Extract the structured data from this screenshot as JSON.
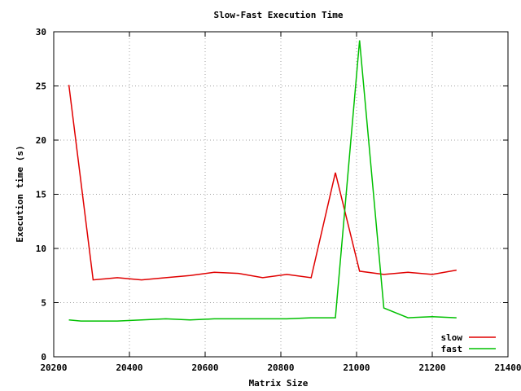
{
  "chart_data": {
    "type": "line",
    "title": "Slow-Fast Execution Time",
    "xlabel": "Matrix Size",
    "ylabel": "Execution time (s)",
    "xlim": [
      20200,
      21400
    ],
    "ylim": [
      0,
      30
    ],
    "xticks": [
      20200,
      20400,
      20600,
      20800,
      21000,
      21200,
      21400
    ],
    "yticks": [
      0,
      5,
      10,
      15,
      20,
      25,
      30
    ],
    "grid": true,
    "legend_position": "bottom-right",
    "series": [
      {
        "name": "slow",
        "color": "#e00000",
        "x": [
          20240,
          20304,
          20368,
          20432,
          20496,
          20560,
          20624,
          20688,
          20752,
          20816,
          20880,
          20944,
          21008,
          21072,
          21136,
          21200,
          21264
        ],
        "y": [
          25.1,
          7.1,
          7.3,
          7.1,
          7.3,
          7.5,
          7.8,
          7.7,
          7.3,
          7.6,
          7.3,
          17.0,
          7.9,
          7.6,
          7.8,
          7.6,
          8.0
        ]
      },
      {
        "name": "fast",
        "color": "#00c000",
        "x": [
          20240,
          20272,
          20368,
          20432,
          20496,
          20560,
          20624,
          20688,
          20752,
          20816,
          20880,
          20944,
          21008,
          21072,
          21136,
          21200,
          21264
        ],
        "y": [
          3.4,
          3.3,
          3.3,
          3.4,
          3.5,
          3.4,
          3.5,
          3.5,
          3.5,
          3.5,
          3.6,
          3.6,
          29.2,
          4.5,
          3.6,
          3.7,
          3.6
        ]
      }
    ]
  }
}
